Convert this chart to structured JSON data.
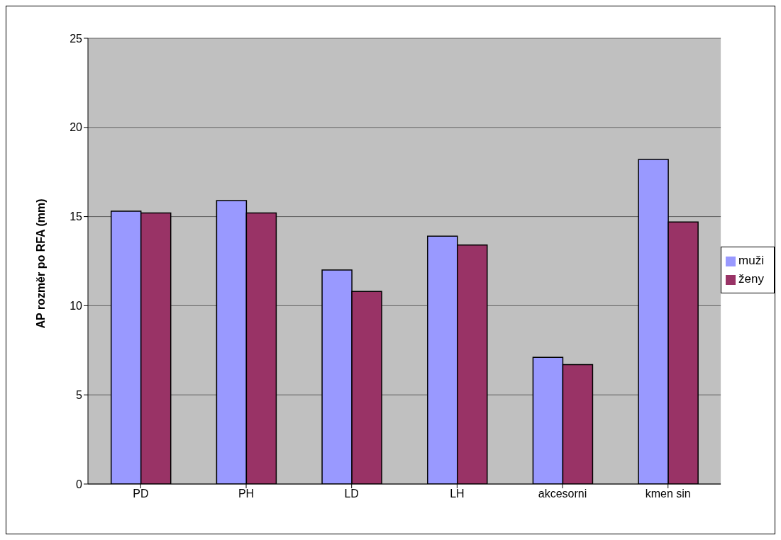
{
  "chart_data": {
    "type": "bar",
    "ylabel": "AP rozměr po RFA (mm)",
    "categories": [
      "PD",
      "PH",
      "LD",
      "LH",
      "akcesorni",
      "kmen sin"
    ],
    "series": [
      {
        "name": "muži",
        "color": "#9999ff",
        "values": [
          15.3,
          15.9,
          12.0,
          13.9,
          7.1,
          18.2
        ]
      },
      {
        "name": "ženy",
        "color": "#993366",
        "values": [
          15.2,
          15.2,
          10.8,
          13.4,
          6.7,
          14.7
        ]
      }
    ],
    "ylim": [
      0,
      25
    ],
    "yticks": [
      0,
      5,
      10,
      15,
      20,
      25
    ],
    "grid": "y",
    "legend": "right"
  }
}
